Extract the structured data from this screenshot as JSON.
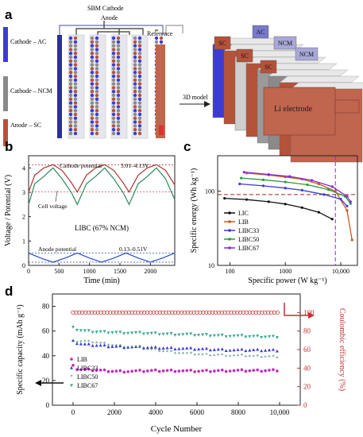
{
  "panels": {
    "a": {
      "label": "a",
      "sbm_cathode": "SBM Cathode",
      "anode": "Anode",
      "reference": "Reference",
      "cathode_ac": "Cathode – AC",
      "cathode_ncm": "Cathode – NCM",
      "anode_sc": "Anode – SC",
      "model_label": "3D model",
      "layer_labels": [
        "SC",
        "SC",
        "SC",
        "AC",
        "NCM",
        "NCM"
      ],
      "li_electrode": "Li electrode",
      "colors": {
        "ac": "#3b3bd6",
        "ncm": "#8a8a8a",
        "sc": "#b5523a",
        "electrode_body": "#c0654e"
      }
    },
    "b": {
      "label": "b",
      "ylabel": "Voltage / Potential (V)",
      "xlabel": "Time (min)",
      "xticks": [
        "0",
        "500",
        "1000",
        "1500",
        "2000"
      ],
      "yticks": [
        "0",
        "1",
        "2",
        "3",
        "4"
      ],
      "cathode_potential": "Cathode potential",
      "cathode_range": "3.01–4.13V",
      "cell_voltage": "Cell voltage",
      "title": "LIBC (67% NCM)",
      "anode_potential": "Anode potential",
      "anode_range": "0.13–0.51V"
    },
    "c": {
      "label": "c",
      "ylabel": "Specific energy (Wh kg⁻¹)",
      "xlabel": "Specific power (W kg⁻¹)",
      "xticks": [
        "100",
        "1000",
        "10,000"
      ],
      "yticks": [
        "10",
        "100"
      ],
      "legend": [
        "LIC",
        "LIB",
        "LIBC33",
        "LIBC50",
        "LIBC67"
      ]
    },
    "d": {
      "label": "d",
      "ylabel_left": "Specific capacity (mAh g⁻¹)",
      "ylabel_right": "Coulombic efficiency (%)",
      "xlabel": "Cycle Number",
      "xticks": [
        "0",
        "2000",
        "4000",
        "6000",
        "8000",
        "10,000"
      ],
      "yticks_left": [
        "0",
        "20",
        "40",
        "60",
        "80"
      ],
      "yticks_right": [
        "0",
        "20",
        "40",
        "60",
        "80",
        "100"
      ],
      "legend": [
        "LIB",
        "LIBC33",
        "LIBC50",
        "LIBC67"
      ]
    }
  },
  "chart_data": [
    {
      "type": "line",
      "panel": "b",
      "xlabel": "Time (min)",
      "ylabel": "Voltage / Potential (V)",
      "xlim": [
        0,
        2400
      ],
      "ylim": [
        0,
        4.5
      ],
      "series": [
        {
          "name": "Cathode potential",
          "color": "#b03030",
          "x": [
            0,
            100,
            250,
            400,
            550,
            700,
            800,
            950,
            1100,
            1250,
            1400,
            1550,
            1650,
            1800,
            1950,
            2100,
            2250,
            2400
          ],
          "y": [
            3.01,
            3.7,
            4.0,
            4.13,
            3.9,
            3.4,
            3.01,
            3.7,
            4.0,
            4.13,
            3.9,
            3.4,
            3.01,
            3.7,
            4.0,
            4.13,
            3.9,
            3.3
          ]
        },
        {
          "name": "Cell voltage",
          "color": "#2a8a5a",
          "x": [
            0,
            100,
            250,
            400,
            550,
            700,
            800,
            950,
            1100,
            1250,
            1400,
            1550,
            1650,
            1800,
            1950,
            2100,
            2250,
            2400
          ],
          "y": [
            2.5,
            3.35,
            3.65,
            4.0,
            3.55,
            3.0,
            2.5,
            3.35,
            3.65,
            4.0,
            3.55,
            3.0,
            2.5,
            3.35,
            3.65,
            4.0,
            3.55,
            2.7
          ]
        },
        {
          "name": "Anode potential",
          "color": "#2b4cc8",
          "x": [
            0,
            200,
            400,
            600,
            800,
            1000,
            1200,
            1400,
            1600,
            1800,
            2000,
            2200,
            2400
          ],
          "y": [
            0.51,
            0.3,
            0.13,
            0.3,
            0.51,
            0.3,
            0.13,
            0.3,
            0.51,
            0.3,
            0.13,
            0.3,
            0.51
          ]
        }
      ],
      "reference_lines": [
        4.13,
        3.01,
        0.51,
        0.13
      ]
    },
    {
      "type": "line",
      "panel": "c",
      "xscale": "log",
      "yscale": "log",
      "xlim": [
        60,
        20000
      ],
      "ylim": [
        10,
        300
      ],
      "series": [
        {
          "name": "LIC",
          "color": "#111111",
          "x": [
            80,
            200,
            500,
            1000,
            2000,
            4000,
            7000
          ],
          "y": [
            80,
            77,
            72,
            67,
            60,
            52,
            42
          ]
        },
        {
          "name": "LIB",
          "color": "#c85a1c",
          "x": [
            200,
            500,
            1000,
            2000,
            4000,
            8000,
            13000,
            16000
          ],
          "y": [
            175,
            165,
            155,
            145,
            125,
            100,
            55,
            22
          ]
        },
        {
          "name": "LIBC33",
          "color": "#3a3ad6",
          "x": [
            150,
            400,
            1000,
            2000,
            5000,
            10000,
            13000
          ],
          "y": [
            125,
            118,
            110,
            103,
            90,
            78,
            63
          ]
        },
        {
          "name": "LIBC50",
          "color": "#2a9a3a",
          "x": [
            160,
            400,
            1000,
            2500,
            6000,
            12000,
            15000
          ],
          "y": [
            150,
            142,
            133,
            122,
            105,
            85,
            68
          ]
        },
        {
          "name": "LIBC67",
          "color": "#8a2ad6",
          "x": [
            180,
            500,
            1200,
            3000,
            7000,
            13000,
            15000
          ],
          "y": [
            180,
            168,
            158,
            140,
            115,
            85,
            72
          ]
        }
      ],
      "reference_lines": {
        "y": 90,
        "x": 8000
      }
    },
    {
      "type": "scatter",
      "panel": "d",
      "xlabel": "Cycle Number",
      "xlim": [
        -1000,
        11000
      ],
      "ylim": [
        0,
        90
      ],
      "ylim_right": [
        0,
        120
      ],
      "series": [
        {
          "name": "LIB",
          "color": "#c02ac0",
          "marker": "circle",
          "x": [
            0,
            200,
            600,
            1000,
            2000,
            3000,
            4000,
            5000,
            6000,
            7000,
            8000,
            9000,
            10000
          ],
          "y": [
            33,
            29,
            28.5,
            28.5,
            27.5,
            27.5,
            28,
            28,
            27.5,
            28,
            28,
            28,
            28.5
          ]
        },
        {
          "name": "LIBC33",
          "color": "#3a3ad6",
          "marker": "triangle",
          "x": [
            0,
            200,
            600,
            1000,
            2000,
            3000,
            4000,
            5000,
            6000,
            7000,
            8000,
            9000,
            10000
          ],
          "y": [
            53,
            50,
            49,
            48.5,
            47.5,
            47,
            46.5,
            46,
            45.5,
            45,
            44.5,
            44.5,
            44.5
          ]
        },
        {
          "name": "LIBC50",
          "color": "#1e7a4a",
          "marker": "star",
          "x": [
            0,
            200,
            600,
            1000,
            2000,
            3000,
            4000,
            5000,
            6000,
            7000,
            8000,
            9000,
            10000
          ],
          "y": [
            52,
            51,
            51,
            50.5,
            48,
            46,
            44,
            42,
            40.5,
            40,
            39.5,
            39,
            38.5
          ]
        },
        {
          "name": "LIBC67",
          "color": "#3aa890",
          "marker": "triangle-down",
          "x": [
            0,
            200,
            600,
            1000,
            2000,
            3000,
            4000,
            5000,
            6000,
            7000,
            8000,
            9000,
            10000
          ],
          "y": [
            64,
            61,
            60,
            59.5,
            59,
            58.5,
            58,
            57.5,
            57,
            56.5,
            56,
            55.5,
            55.5
          ]
        },
        {
          "name": "Coulombic efficiency",
          "color": "#c03030",
          "marker": "open-circle",
          "axis": "right",
          "x": [
            0,
            1000,
            2000,
            3000,
            4000,
            5000,
            6000,
            7000,
            8000,
            9000,
            10000
          ],
          "y": [
            100,
            100,
            100,
            100,
            100,
            100,
            100,
            100,
            100,
            100,
            100
          ]
        }
      ]
    }
  ]
}
